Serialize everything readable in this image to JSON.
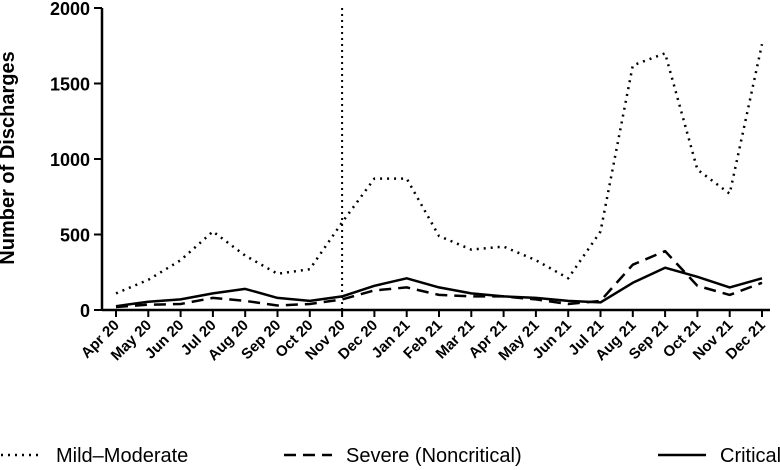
{
  "chart_data": {
    "type": "line",
    "title": "",
    "xlabel": "",
    "ylabel": "Number of Discharges",
    "ylim": [
      0,
      2000
    ],
    "yticks": [
      0,
      500,
      1000,
      1500,
      2000
    ],
    "grid": false,
    "legend_position": "bottom",
    "categories": [
      "Apr 20",
      "May 20",
      "Jun 20",
      "Jul 20",
      "Aug 20",
      "Sep 20",
      "Oct 20",
      "Nov 20",
      "Dec 20",
      "Jan 21",
      "Feb 21",
      "Mar 21",
      "Apr 21",
      "May 21",
      "Jun 21",
      "Jul 21",
      "Aug 21",
      "Sep 21",
      "Oct 21",
      "Nov 21",
      "Dec 21"
    ],
    "vertical_marker_category": "Nov 20",
    "series": [
      {
        "name": "Mild–Moderate",
        "style": "dotted",
        "values": [
          110,
          200,
          330,
          520,
          360,
          240,
          270,
          580,
          870,
          870,
          490,
          400,
          420,
          330,
          210,
          520,
          1620,
          1700,
          930,
          770,
          1760
        ]
      },
      {
        "name": "Severe (Noncritical)",
        "style": "dashed",
        "values": [
          20,
          35,
          40,
          80,
          60,
          30,
          40,
          70,
          130,
          150,
          100,
          90,
          90,
          70,
          40,
          60,
          300,
          390,
          160,
          100,
          180
        ]
      },
      {
        "name": "Critical",
        "style": "solid",
        "values": [
          25,
          55,
          70,
          110,
          140,
          80,
          60,
          90,
          160,
          210,
          150,
          110,
          90,
          80,
          60,
          50,
          180,
          280,
          220,
          150,
          210
        ]
      }
    ]
  }
}
